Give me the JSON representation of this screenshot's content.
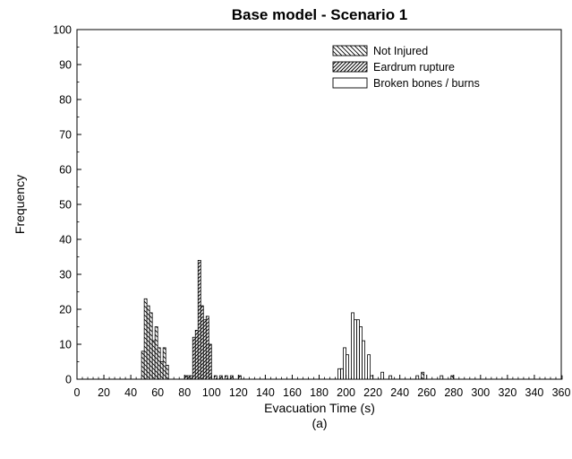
{
  "chart_data": {
    "type": "bar",
    "title": "Base model - Scenario 1",
    "xlabel": "Evacuation Time (s)",
    "ylabel": "Frequency",
    "caption": "(a)",
    "xlim": [
      0,
      360
    ],
    "ylim": [
      0,
      100
    ],
    "bin_width": 2,
    "grid": false,
    "legend_position": "top-right",
    "x_ticks": [
      0,
      20,
      40,
      60,
      80,
      100,
      120,
      140,
      160,
      180,
      200,
      220,
      240,
      260,
      280,
      300,
      320,
      340,
      360
    ],
    "y_ticks": [
      0,
      10,
      20,
      30,
      40,
      50,
      60,
      70,
      80,
      90,
      100
    ],
    "series": [
      {
        "name": "Not Injured",
        "pattern": "backslash-hatch",
        "points": [
          [
            48,
            8
          ],
          [
            50,
            23
          ],
          [
            52,
            21
          ],
          [
            54,
            19
          ],
          [
            56,
            11
          ],
          [
            58,
            15
          ],
          [
            60,
            9
          ],
          [
            62,
            5
          ],
          [
            64,
            9
          ],
          [
            66,
            4
          ],
          [
            256,
            2
          ],
          [
            278,
            1
          ]
        ]
      },
      {
        "name": "Eardrum rupture",
        "pattern": "slash-hatch",
        "points": [
          [
            80,
            1
          ],
          [
            82,
            1
          ],
          [
            84,
            1
          ],
          [
            86,
            12
          ],
          [
            88,
            14
          ],
          [
            90,
            34
          ],
          [
            92,
            21
          ],
          [
            94,
            17
          ],
          [
            96,
            18
          ],
          [
            98,
            10
          ],
          [
            102,
            1
          ],
          [
            106,
            1
          ],
          [
            110,
            1
          ],
          [
            114,
            1
          ],
          [
            120,
            1
          ]
        ]
      },
      {
        "name": "Broken bones / burns",
        "pattern": "blank",
        "points": [
          [
            194,
            3
          ],
          [
            196,
            3
          ],
          [
            198,
            9
          ],
          [
            200,
            7
          ],
          [
            204,
            19
          ],
          [
            206,
            17
          ],
          [
            208,
            17
          ],
          [
            210,
            15
          ],
          [
            212,
            11
          ],
          [
            216,
            7
          ],
          [
            218,
            1
          ],
          [
            226,
            2
          ],
          [
            232,
            1
          ],
          [
            252,
            1
          ],
          [
            270,
            1
          ],
          [
            360,
            1
          ]
        ]
      }
    ]
  }
}
